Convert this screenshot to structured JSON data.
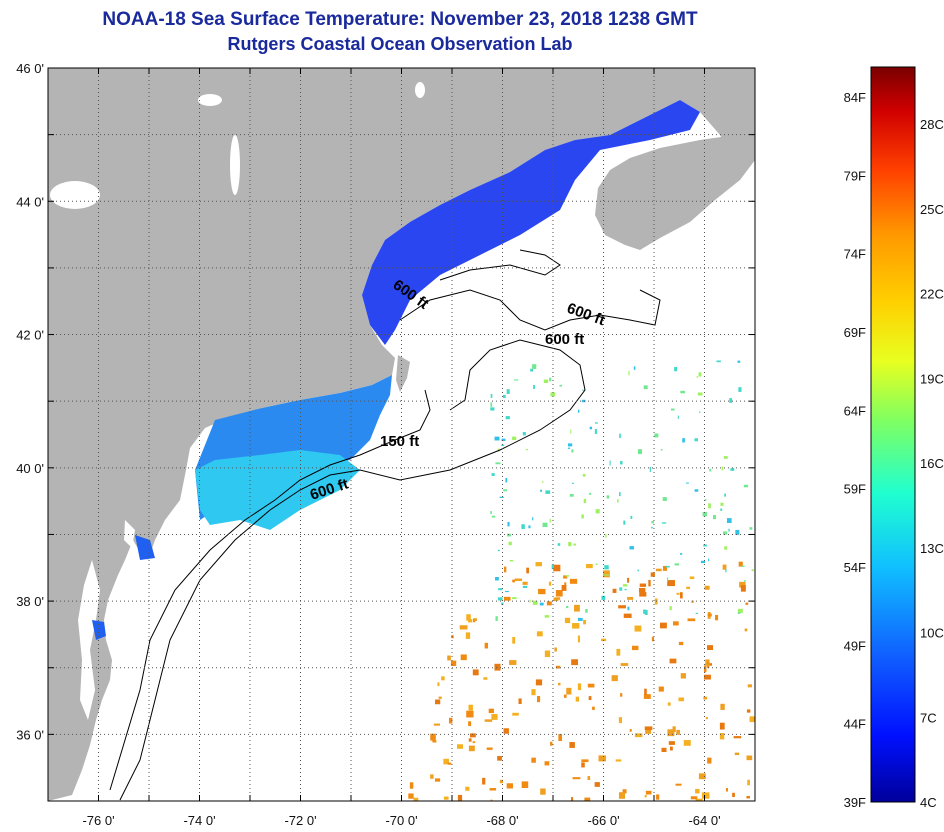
{
  "title": "NOAA-18 Sea Surface Temperature:  November 23, 2018 1238 GMT",
  "subtitle": "Rutgers Coastal Ocean Observation Lab",
  "map": {
    "lon_range": [
      -77.0,
      -63.0
    ],
    "lat_range": [
      35.0,
      46.0
    ],
    "lon_ticks": [
      "-76 0'",
      "-74 0'",
      "-72 0'",
      "-70 0'",
      "-68 0'",
      "-66 0'",
      "-64 0'"
    ],
    "lat_ticks": [
      "46 0'",
      "44 0'",
      "42 0'",
      "40 0'",
      "38 0'",
      "36 0'"
    ],
    "grid": "dotted",
    "land_color": "#b4b4b4",
    "contour_labels": [
      "600 ft",
      "600 ft",
      "600 ft",
      "150 ft",
      "600 ft"
    ]
  },
  "colorbar": {
    "fahrenheit_labels": [
      "84F",
      "79F",
      "74F",
      "69F",
      "64F",
      "59F",
      "54F",
      "49F",
      "44F",
      "39F"
    ],
    "celsius_labels": [
      "28C",
      "25C",
      "22C",
      "19C",
      "16C",
      "13C",
      "10C",
      "7C",
      "4C"
    ],
    "colors": [
      "#7a0000",
      "#d00000",
      "#ff4000",
      "#ff9a00",
      "#ffd000",
      "#e8ff20",
      "#80ff60",
      "#20ffd0",
      "#10c0ff",
      "#1060ff",
      "#0010ff",
      "#00009a"
    ]
  }
}
